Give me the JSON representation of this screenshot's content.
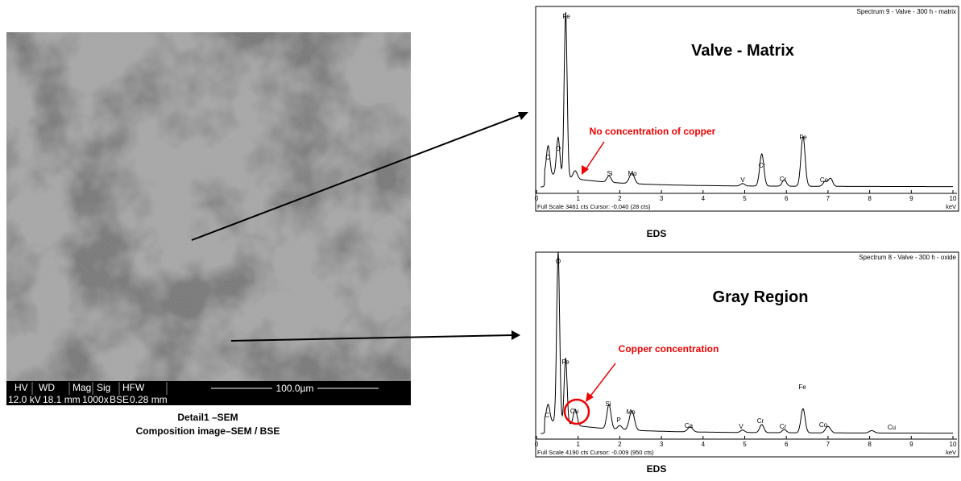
{
  "sem": {
    "info_headers": [
      "HV",
      "WD",
      "Mag",
      "Sig",
      "HFW"
    ],
    "info_values": [
      "12.0 kV",
      "18.1 mm",
      "1000x",
      "BSE",
      "0.28 mm"
    ],
    "scale_bar": "100.0µm",
    "caption": [
      "Detail1 –SEM",
      "Composition image–SEM / BSE"
    ]
  },
  "spectra": [
    {
      "header": "Spectrum 9 - Valve - 300 h - matrix",
      "title": "Valve - Matrix",
      "annotation": "No concentration of copper",
      "peaks": [
        "C",
        "O",
        "Fe",
        "Si",
        "Mo",
        "V",
        "Cr",
        "Cr",
        "Fe",
        "Co"
      ],
      "x_ticks": [
        0,
        1,
        2,
        3,
        4,
        5,
        6,
        7,
        8,
        9,
        10
      ],
      "footer": "Full Scale 3461 cts Cursor: -0.040  (28 cts)",
      "unit": "keV",
      "caption": "EDS"
    },
    {
      "header": "Spectrum 8 - Valve - 300 h - oxide",
      "title": "Gray Region",
      "annotation": "Copper concentration",
      "peaks": [
        "O",
        "Fe",
        "C",
        "Cu",
        "Si",
        "P",
        "Mo",
        "Ca",
        "V",
        "Cr",
        "Cr",
        "Fe",
        "Co",
        "Cu"
      ],
      "x_ticks": [
        0,
        1,
        2,
        3,
        4,
        5,
        6,
        7,
        8,
        9,
        10
      ],
      "footer": "Full Scale 4190 cts Cursor: -0.009  (950 cts)",
      "unit": "keV",
      "caption": "EDS"
    }
  ]
}
